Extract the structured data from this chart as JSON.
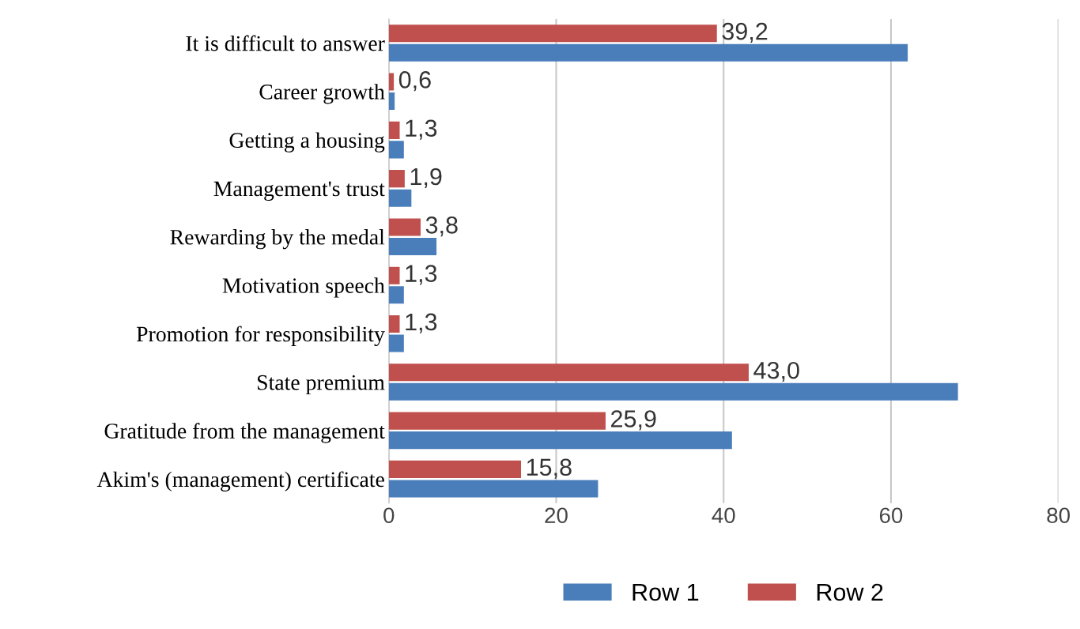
{
  "chart_data": {
    "type": "bar",
    "orientation": "horizontal",
    "categories": [
      "It is difficult to answer",
      "Career growth",
      "Getting a housing",
      "Management's trust",
      "Rewarding by the medal",
      "Motivation speech",
      "Promotion for responsibility",
      "State premium",
      "Gratitude from the management",
      "Akim's (management) certificate"
    ],
    "series": [
      {
        "name": "Row 1",
        "color": "#4a7ebb",
        "values": [
          62.0,
          0.7,
          1.8,
          2.7,
          5.7,
          1.8,
          1.8,
          68.0,
          41.0,
          25.0
        ]
      },
      {
        "name": "Row 2",
        "color": "#c0504d",
        "values": [
          39.2,
          0.6,
          1.3,
          1.9,
          3.8,
          1.3,
          1.3,
          43.0,
          25.9,
          15.8
        ],
        "value_labels": [
          "39,2",
          "0,6",
          "1,3",
          "1,9",
          "3,8",
          "1,3",
          "1,3",
          "43,0",
          "25,9",
          "15,8"
        ]
      }
    ],
    "xlim": [
      0,
      80
    ],
    "xticks": [
      0,
      20,
      40,
      60,
      80
    ],
    "grid": "x",
    "legend": "bottom"
  }
}
